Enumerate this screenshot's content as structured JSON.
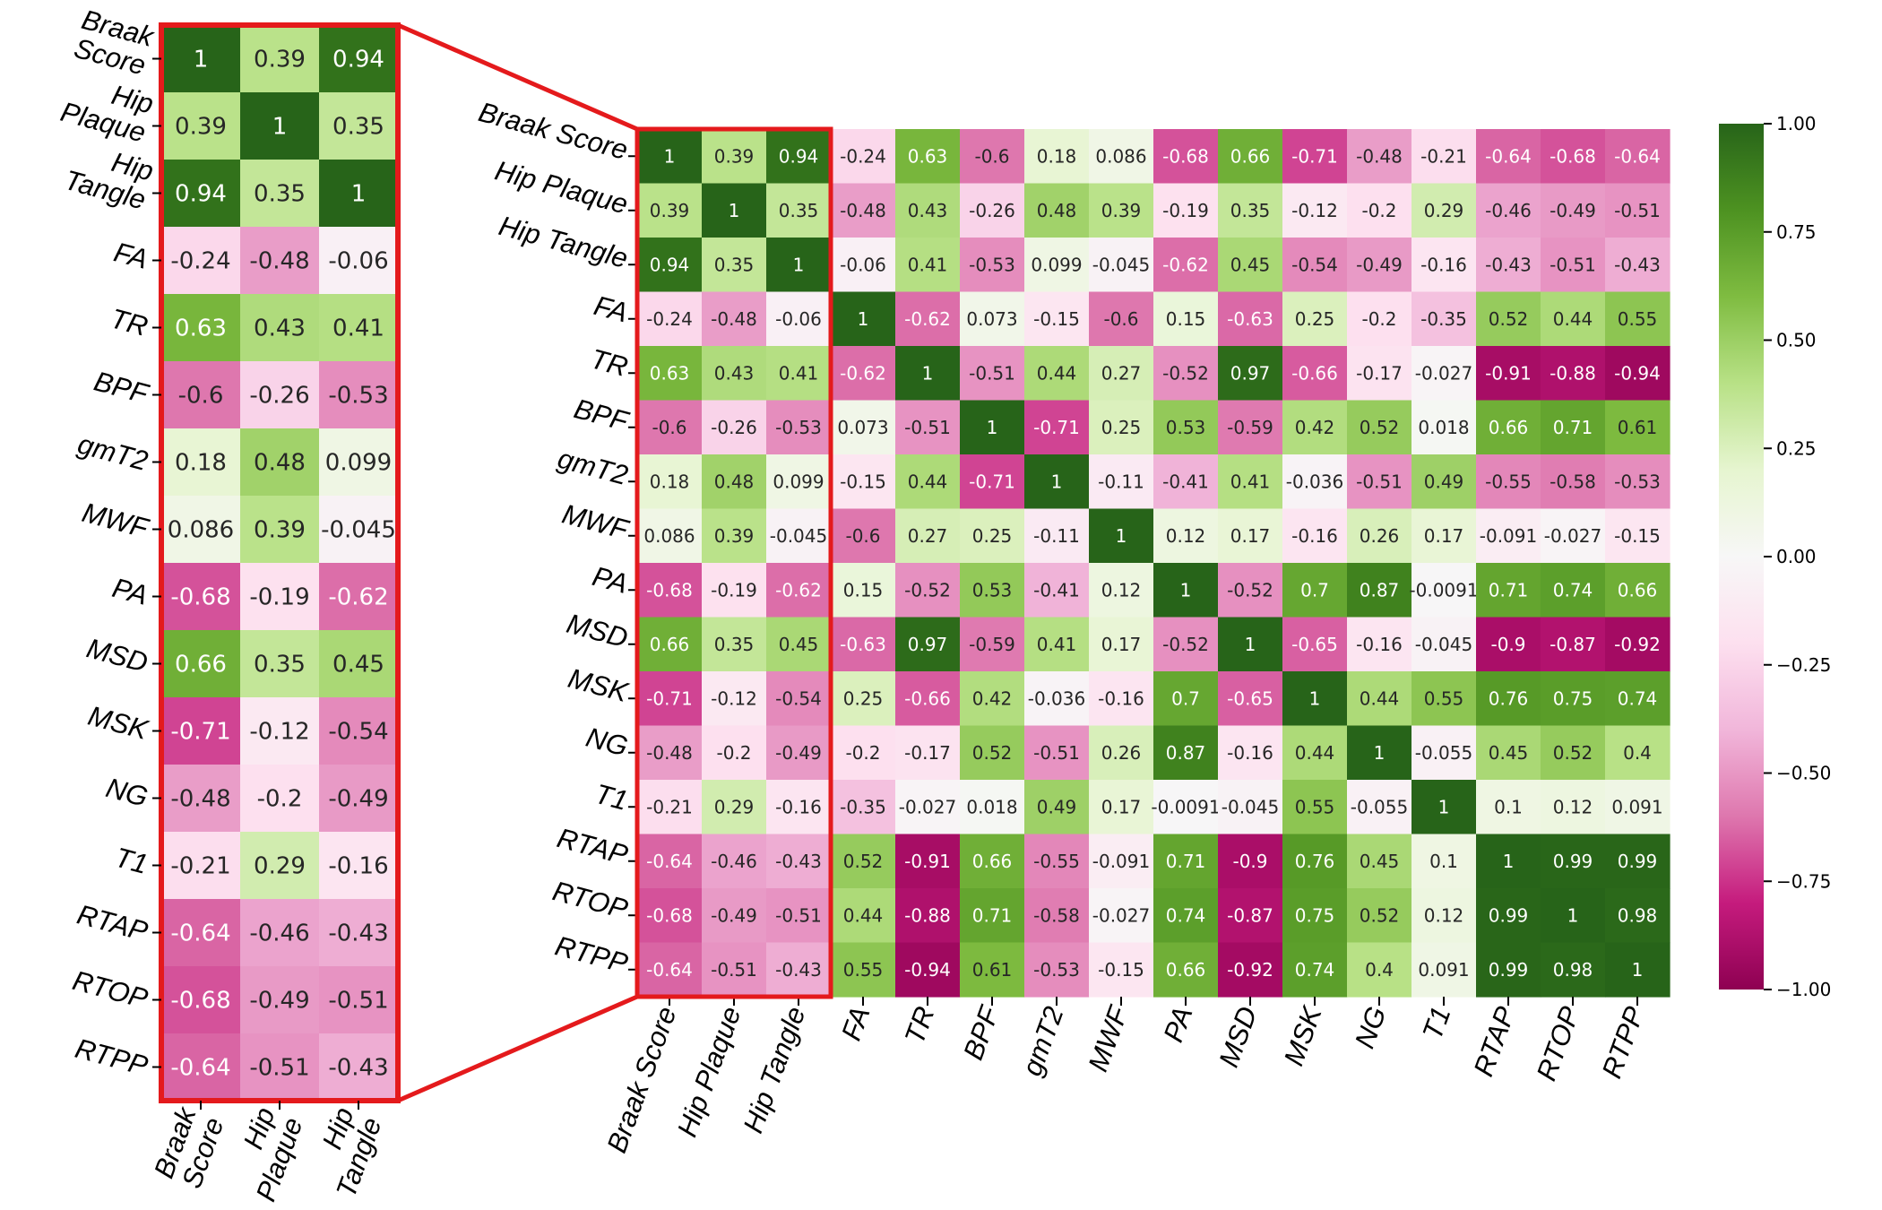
{
  "chart_data": [
    {
      "type": "heatmap",
      "name": "main-heatmap",
      "row_labels": [
        "Braak Score",
        "Hip Plaque",
        "Hip Tangle",
        "FA",
        "TR",
        "BPF",
        "gmT2",
        "MWF",
        "PA",
        "MSD",
        "MSK",
        "NG",
        "T1",
        "RTAP",
        "RTOP",
        "RTPP"
      ],
      "col_labels": [
        "Braak Score",
        "Hip Plaque",
        "Hip Tangle",
        "FA",
        "TR",
        "BPF",
        "gmT2",
        "MWF",
        "PA",
        "MSD",
        "MSK",
        "NG",
        "T1",
        "RTAP",
        "RTOP",
        "RTPP"
      ],
      "values": [
        [
          1,
          0.39,
          0.94,
          -0.24,
          0.63,
          -0.6,
          0.18,
          0.086,
          -0.68,
          0.66,
          -0.71,
          -0.48,
          -0.21,
          -0.64,
          -0.68,
          -0.64
        ],
        [
          0.39,
          1,
          0.35,
          -0.48,
          0.43,
          -0.26,
          0.48,
          0.39,
          -0.19,
          0.35,
          -0.12,
          -0.2,
          0.29,
          -0.46,
          -0.49,
          -0.51
        ],
        [
          0.94,
          0.35,
          1,
          -0.06,
          0.41,
          -0.53,
          0.099,
          -0.045,
          -0.62,
          0.45,
          -0.54,
          -0.49,
          -0.16,
          -0.43,
          -0.51,
          -0.43
        ],
        [
          -0.24,
          -0.48,
          -0.06,
          1,
          -0.62,
          0.073,
          -0.15,
          -0.6,
          0.15,
          -0.63,
          0.25,
          -0.2,
          -0.35,
          0.52,
          0.44,
          0.55
        ],
        [
          0.63,
          0.43,
          0.41,
          -0.62,
          1,
          -0.51,
          0.44,
          0.27,
          -0.52,
          0.97,
          -0.66,
          -0.17,
          -0.027,
          -0.91,
          -0.88,
          -0.94
        ],
        [
          -0.6,
          -0.26,
          -0.53,
          0.073,
          -0.51,
          1,
          -0.71,
          0.25,
          0.53,
          -0.59,
          0.42,
          0.52,
          0.018,
          0.66,
          0.71,
          0.61
        ],
        [
          0.18,
          0.48,
          0.099,
          -0.15,
          0.44,
          -0.71,
          1,
          -0.11,
          -0.41,
          0.41,
          -0.036,
          -0.51,
          0.49,
          -0.55,
          -0.58,
          -0.53
        ],
        [
          0.086,
          0.39,
          -0.045,
          -0.6,
          0.27,
          0.25,
          -0.11,
          1,
          0.12,
          0.17,
          -0.16,
          0.26,
          0.17,
          -0.091,
          -0.027,
          -0.15
        ],
        [
          -0.68,
          -0.19,
          -0.62,
          0.15,
          -0.52,
          0.53,
          -0.41,
          0.12,
          1,
          -0.52,
          0.7,
          0.87,
          -0.0091,
          0.71,
          0.74,
          0.66
        ],
        [
          0.66,
          0.35,
          0.45,
          -0.63,
          0.97,
          -0.59,
          0.41,
          0.17,
          -0.52,
          1,
          -0.65,
          -0.16,
          -0.045,
          -0.9,
          -0.87,
          -0.92
        ],
        [
          -0.71,
          -0.12,
          -0.54,
          0.25,
          -0.66,
          0.42,
          -0.036,
          -0.16,
          0.7,
          -0.65,
          1,
          0.44,
          0.55,
          0.76,
          0.75,
          0.74
        ],
        [
          -0.48,
          -0.2,
          -0.49,
          -0.2,
          -0.17,
          0.52,
          -0.51,
          0.26,
          0.87,
          -0.16,
          0.44,
          1,
          -0.055,
          0.45,
          0.52,
          0.4
        ],
        [
          -0.21,
          0.29,
          -0.16,
          -0.35,
          -0.027,
          0.018,
          0.49,
          0.17,
          -0.0091,
          -0.045,
          0.55,
          -0.055,
          1,
          0.1,
          0.12,
          0.091
        ],
        [
          -0.64,
          -0.46,
          -0.43,
          0.52,
          -0.91,
          0.66,
          -0.55,
          -0.091,
          0.71,
          -0.9,
          0.76,
          0.45,
          0.1,
          1,
          0.99,
          0.99
        ],
        [
          -0.68,
          -0.49,
          -0.51,
          0.44,
          -0.88,
          0.71,
          -0.58,
          -0.027,
          0.74,
          -0.87,
          0.75,
          0.52,
          0.12,
          0.99,
          1,
          0.98
        ],
        [
          -0.64,
          -0.51,
          -0.43,
          0.55,
          -0.94,
          0.61,
          -0.53,
          -0.15,
          0.66,
          -0.92,
          0.74,
          0.4,
          0.091,
          0.99,
          0.98,
          1
        ]
      ],
      "colormap": "PiYG",
      "vmin": -1,
      "vmax": 1,
      "colorbar_ticks": [
        "1.00",
        "0.75",
        "0.50",
        "0.25",
        "0.00",
        "−0.25",
        "−0.50",
        "−0.75",
        "−1.00"
      ],
      "colorbar_tick_values": [
        1,
        0.75,
        0.5,
        0.25,
        0,
        -0.25,
        -0.5,
        -0.75,
        -1
      ]
    },
    {
      "type": "heatmap",
      "name": "zoom-inset",
      "row_labels": [
        "Braak Score",
        "Hip Plaque",
        "Hip Tangle",
        "FA",
        "TR",
        "BPF",
        "gmT2",
        "MWF",
        "PA",
        "MSD",
        "MSK",
        "NG",
        "T1",
        "RTAP",
        "RTOP",
        "RTPP"
      ],
      "col_labels": [
        "Braak Score",
        "Hip Plaque",
        "Hip Tangle"
      ],
      "col_label_lines": [
        [
          "Braak",
          "Score"
        ],
        [
          "Hip",
          "Plaque"
        ],
        [
          "Hip",
          "Tangle"
        ]
      ],
      "row_label_lines": [
        [
          "Braak",
          "Score"
        ],
        [
          "Hip",
          "Plaque"
        ],
        [
          "Hip",
          "Tangle"
        ],
        [
          "FA"
        ],
        [
          "TR"
        ],
        [
          "BPF"
        ],
        [
          "gmT2"
        ],
        [
          "MWF"
        ],
        [
          "PA"
        ],
        [
          "MSD"
        ],
        [
          "MSK"
        ],
        [
          "NG"
        ],
        [
          "T1"
        ],
        [
          "RTAP"
        ],
        [
          "RTOP"
        ],
        [
          "RTPP"
        ]
      ],
      "highlight_color": "#e41a1c"
    }
  ]
}
